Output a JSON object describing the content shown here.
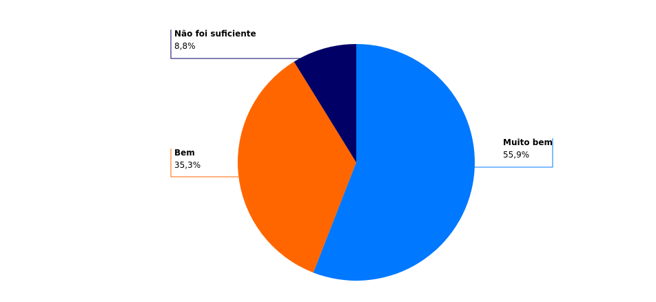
{
  "chart_data": {
    "type": "pie",
    "categories": [
      "Muito bem",
      "Bem",
      "Não foi suficiente"
    ],
    "values": [
      55.9,
      35.3,
      8.8
    ],
    "value_labels": [
      "55,9%",
      "35,3%",
      "8,8%"
    ],
    "colors": [
      "#0078ff",
      "#ff6600",
      "#000066"
    ]
  }
}
